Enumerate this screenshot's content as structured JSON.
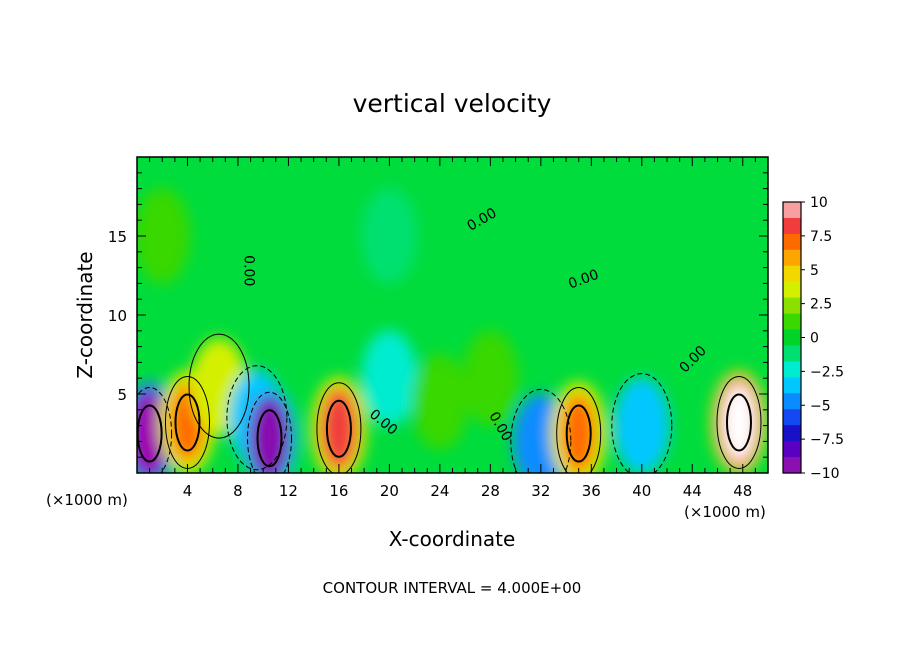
{
  "chart_data": {
    "type": "heatmap",
    "title": "vertical velocity",
    "xlabel": "X-coordinate",
    "ylabel": "Z-coordinate",
    "x_unit_left": "(×1000 m)",
    "x_unit_right": "(×1000 m)",
    "xlim": [
      0,
      50
    ],
    "ylim": [
      0,
      20
    ],
    "x_ticks": [
      4,
      8,
      12,
      16,
      20,
      24,
      28,
      32,
      36,
      40,
      44,
      48
    ],
    "y_ticks": [
      5,
      10,
      15
    ],
    "note": "CONTOUR INTERVAL = 4.000E+00",
    "colorbar": {
      "ticks": [
        10,
        7.5,
        5,
        2.5,
        0,
        -2.5,
        -5,
        -7.5,
        -10
      ],
      "tick_labels": [
        "10",
        "7.5",
        "5",
        "2.5",
        "0",
        "−2.5",
        "−5",
        "−7.5",
        "−10"
      ],
      "colors": [
        "#f8a0a0",
        "#f03c3c",
        "#ff6a00",
        "#ffa500",
        "#f0d800",
        "#d4f000",
        "#8ce000",
        "#38d800",
        "#00d428",
        "#00e070",
        "#00ecd0",
        "#00c8ff",
        "#0a8cff",
        "#1448f0",
        "#1a10c8",
        "#5a00c0",
        "#8a10b0"
      ]
    },
    "cells": [
      {
        "x": 1.0,
        "z": 2.5,
        "w": -11
      },
      {
        "x": 4.0,
        "z": 3.2,
        "w": 7
      },
      {
        "x": 6.5,
        "z": 5.5,
        "w": 3
      },
      {
        "x": 9.5,
        "z": 3.5,
        "w": -4
      },
      {
        "x": 10.5,
        "z": 2.2,
        "w": -9
      },
      {
        "x": 16.0,
        "z": 2.8,
        "w": 8
      },
      {
        "x": 20.0,
        "z": 6.0,
        "w": -2
      },
      {
        "x": 24.0,
        "z": 4.5,
        "w": 1.5
      },
      {
        "x": 28.0,
        "z": 6.0,
        "w": 1.5
      },
      {
        "x": 32.0,
        "z": 2.0,
        "w": -5
      },
      {
        "x": 35.0,
        "z": 2.5,
        "w": 7
      },
      {
        "x": 40.0,
        "z": 3.0,
        "w": -4
      },
      {
        "x": 47.7,
        "z": 3.2,
        "w": 11
      },
      {
        "x": 20.0,
        "z": 15.0,
        "w": -1
      },
      {
        "x": 2.0,
        "z": 15.0,
        "w": 1.2
      }
    ],
    "zero_contour_labels": [
      {
        "x": 8.5,
        "z": 12.8,
        "text": "0.00",
        "angle": 90
      },
      {
        "x": 27.5,
        "z": 15.8,
        "text": "0.00",
        "angle": -30
      },
      {
        "x": 35.5,
        "z": 12.0,
        "text": "0.00",
        "angle": -20
      },
      {
        "x": 44.3,
        "z": 7.0,
        "text": "0.00",
        "angle": -45
      },
      {
        "x": 19.3,
        "z": 3.0,
        "text": "0.00",
        "angle": 40
      },
      {
        "x": 28.5,
        "z": 2.8,
        "text": "0.00",
        "angle": 60
      }
    ]
  }
}
